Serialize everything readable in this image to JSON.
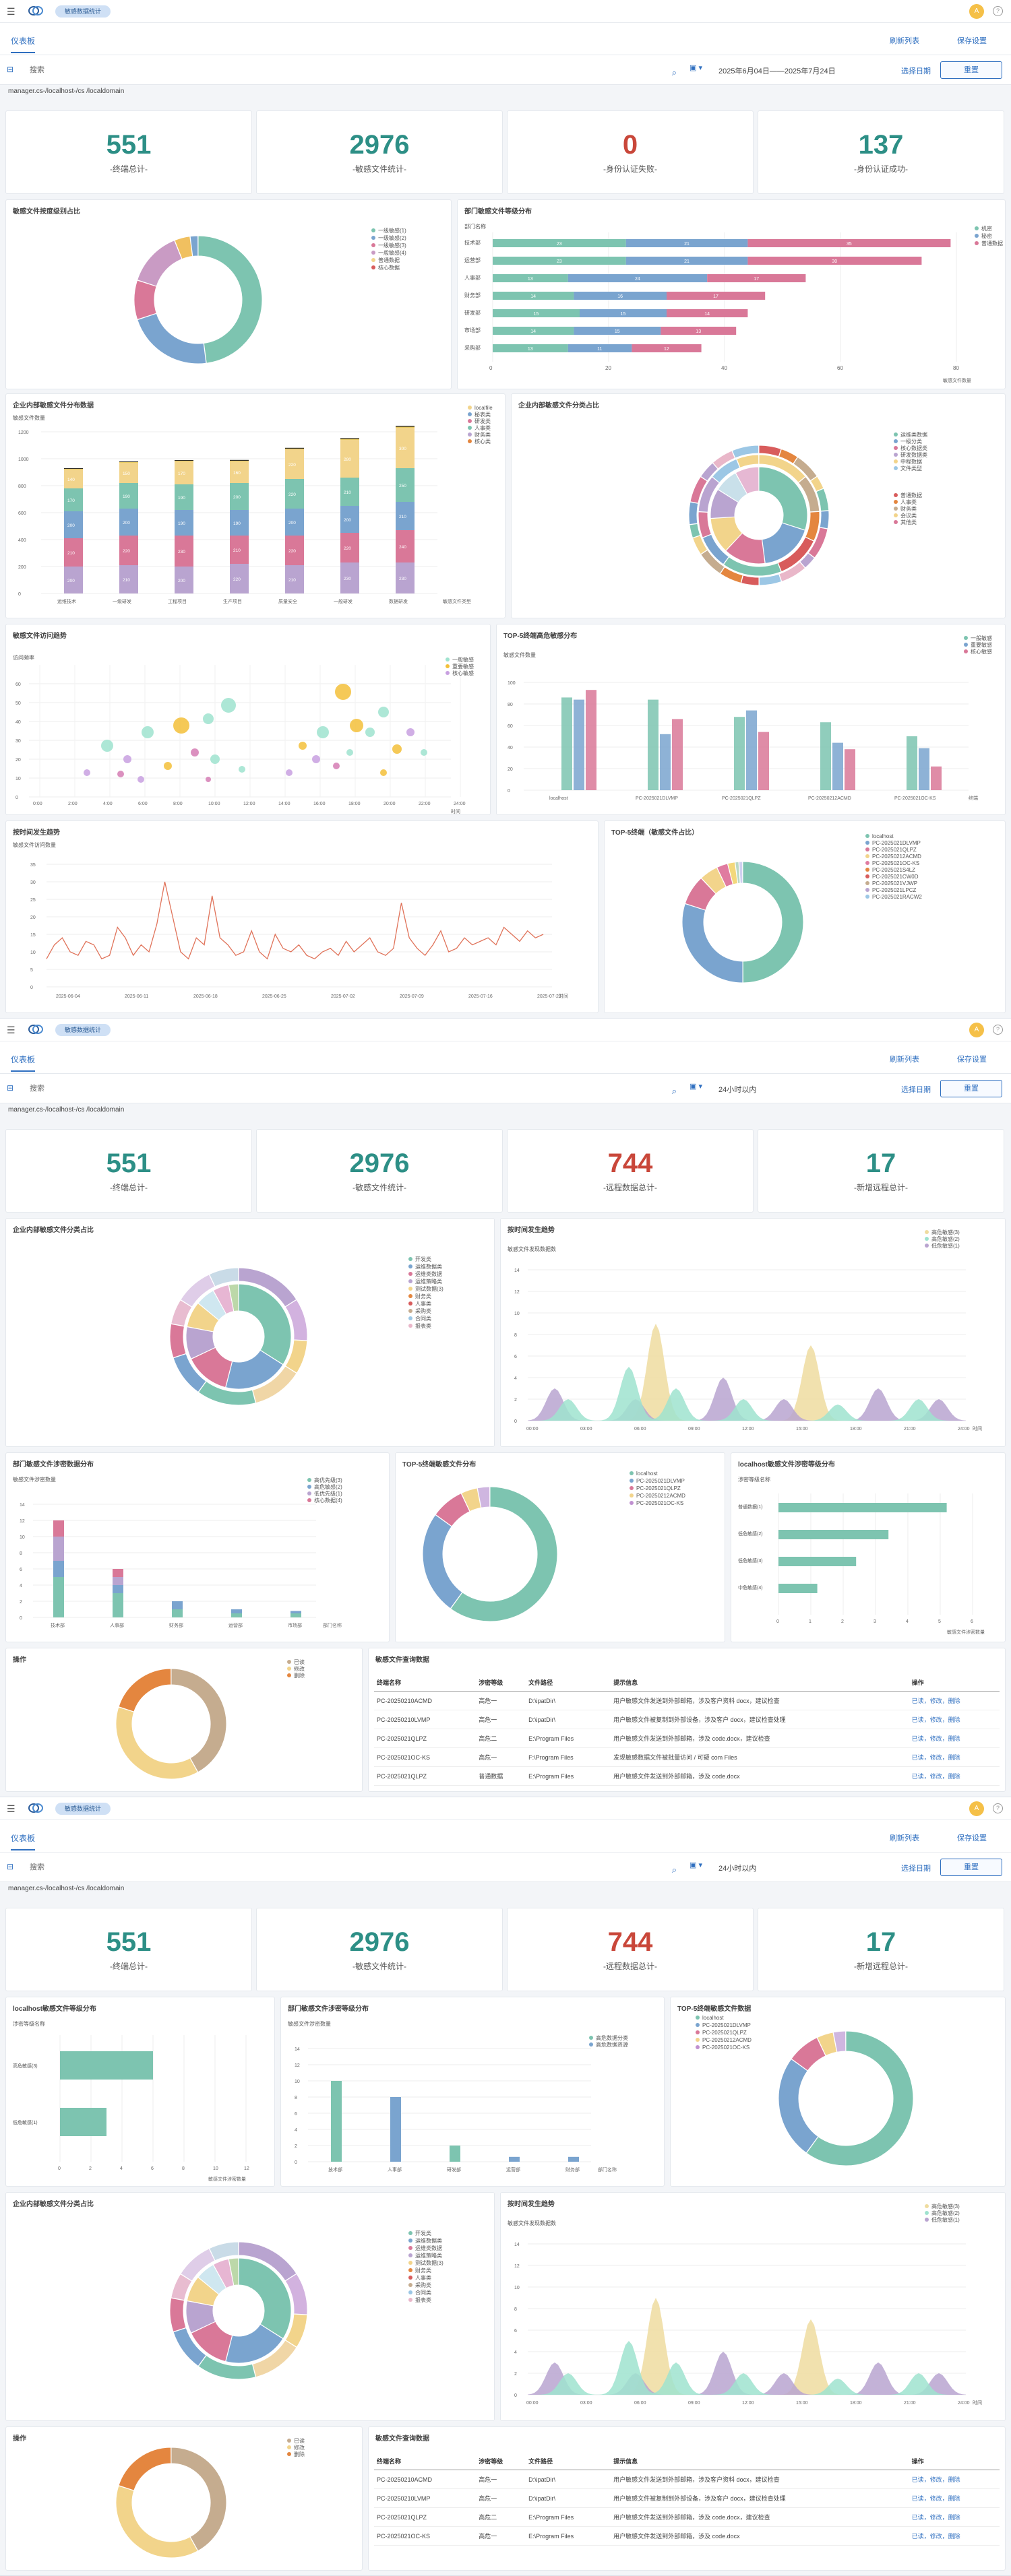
{
  "header": {
    "tag": "敏感数据统计",
    "avatar": "A"
  },
  "tabs": {
    "active": "仪表板",
    "refresh": "刷新列表",
    "save": "保存设置"
  },
  "filter": {
    "search_placeholder": "搜索",
    "date_range1": "2025年6月04日——2025年7月24日",
    "date_range2": "24小时以内",
    "select_all": "选择日期",
    "reset": "重置"
  },
  "path": "manager.cs-/localhost-/cs /localdomain",
  "kpi1": [
    {
      "value": "551",
      "label": "-终端总计-",
      "color": "#2d8f86"
    },
    {
      "value": "2976",
      "label": "-敏感文件统计-",
      "color": "#2d8f86"
    },
    {
      "value": "0",
      "label": "-身份认证失败-",
      "color": "#c9473a"
    },
    {
      "value": "137",
      "label": "-身份认证成功-",
      "color": "#2d8f86"
    }
  ],
  "kpi2": [
    {
      "value": "551",
      "label": "-终端总计-",
      "color": "#2d8f86"
    },
    {
      "value": "2976",
      "label": "-敏感文件统计-",
      "color": "#2d8f86"
    },
    {
      "value": "744",
      "label": "-远程数据总计-",
      "color": "#c9473a"
    },
    {
      "value": "17",
      "label": "-新增远程总计-",
      "color": "#2d8f86"
    }
  ],
  "titles": {
    "d1a": "敏感文件按度级别占比",
    "d1b": "部门敏感文件等级分布",
    "d1c": "企业内部敏感文件分布数据",
    "d1d": "企业内部敏感文件分类占比",
    "d1e": "敏感文件访问趋势",
    "d1f": "TOP-5终端高危敏感分布",
    "d1g": "按时间发生趋势",
    "d1h": "TOP-5终端（敏感文件占比）",
    "d2a": "企业内部敏感文件分类占比",
    "d2b": "按时间发生趋势",
    "d2c": "部门敏感文件涉密数据分布",
    "d2d": "TOP-5终端敏感文件分布",
    "d2e": "localhost敏感文件涉密等级分布",
    "d2f": "操作",
    "d2g": "敏感文件查询数据",
    "d3a": "localhost敏感文件等级分布",
    "d3b": "部门敏感文件涉密等级分布",
    "d3c": "TOP-5终端敏感文件数据",
    "d3d": "企业内部敏感文件分类占比",
    "d3e": "按时间发生趋势",
    "d3f": "操作",
    "d3g": "敏感文件查询数据"
  },
  "legends": {
    "levels": [
      "一级敏感(1)",
      "一级敏感(2)",
      "一级敏感(3)",
      "一般敏感(4)",
      "普通数据",
      "核心数据"
    ],
    "dept3": [
      "机密",
      "秘密",
      "普通数据"
    ],
    "filetypes": [
      "localfile",
      "秘表类",
      "研发类",
      "人事类",
      "财务类",
      "核心类"
    ],
    "trend3": [
      "一般敏感",
      "重要敏感",
      "核心敏感"
    ],
    "top5": [
      "localhost",
      "PC-2025021DLVMP",
      "PC-2025021QLPZ",
      "PC-20250212ACMD",
      "PC-2025021OC-KS"
    ],
    "top5b": [
      "一般敏感",
      "重要敏感",
      "核心敏感"
    ],
    "cat2": [
      "开发类",
      "运维数据类",
      "运维类数据",
      "运维策略类",
      "测试数据(3)",
      "财务类",
      "人事类",
      "采购类",
      "合同类",
      "报表类"
    ],
    "dept4": [
      "高优先级(3)",
      "高危敏感(2)",
      "低优先级(1)",
      "核心数据(4)"
    ],
    "ops": [
      "已读",
      "修改",
      "删除"
    ],
    "lvl2": [
      "高危敏感(3)",
      "高危敏感(2)",
      "低危敏感(1)"
    ],
    "dept2": [
      "高危数据分类",
      "高危数据资源"
    ]
  },
  "chart_data": [
    {
      "type": "pie",
      "title": "敏感文件按度级别占比",
      "values": [
        48,
        22,
        10,
        14,
        4,
        2
      ]
    },
    {
      "type": "bar",
      "title": "部门敏感文件等级分布",
      "xlabel": "敏感文件数量",
      "categories": [
        "技术部",
        "运营部",
        "人事部",
        "财务部",
        "研发部",
        "市场部",
        "采购部"
      ],
      "series": [
        {
          "name": "机密",
          "values": [
            23,
            23,
            13,
            14,
            15,
            14,
            13
          ]
        },
        {
          "name": "秘密",
          "values": [
            21,
            21,
            24,
            16,
            15,
            15,
            11
          ]
        },
        {
          "name": "普通数据",
          "values": [
            35,
            30,
            17,
            17,
            14,
            13,
            12
          ]
        }
      ],
      "xlim": [
        0,
        80
      ]
    },
    {
      "type": "bar",
      "title": "企业内部敏感文件分布数据",
      "ylabel": "敏感文件数量",
      "categories": [
        "运维技术",
        "一级研发",
        "工程项目",
        "生产项目",
        "质量安全",
        "一般研发",
        "数据研发"
      ],
      "ylim": [
        0,
        1500
      ]
    },
    {
      "type": "line",
      "title": "按时间发生趋势",
      "xlabel": "时间",
      "x": [
        "2025-06-04",
        "2025-06-11",
        "2025-06-18",
        "2025-06-25",
        "2025-07-02",
        "2025-07-09",
        "2025-07-16",
        "2025-07-23"
      ],
      "ylim": [
        0,
        35
      ]
    }
  ],
  "tables": {
    "head": [
      "终端名称",
      "涉密等级",
      "文件路径",
      "提示信息",
      "操作"
    ],
    "rows": [
      [
        "PC-20250210ACMD",
        "高危一",
        "D:\\ipatDir\\",
        "用户敏感文件发送到外部邮箱，涉及客户资料 docx，建议检查",
        "已读，修改，删除"
      ],
      [
        "PC-20250210LVMP",
        "高危一",
        "D:\\ipatDir\\",
        "用户敏感文件被复制到外部设备，涉及客户 docx，建议检查处理",
        "已读，修改，删除"
      ],
      [
        "PC-2025021QLPZ",
        "高危二",
        "E:\\Program Files",
        "用户敏感文件发送到外部邮箱，涉及 code.docx，建议检查",
        "已读，修改，删除"
      ],
      [
        "PC-2025021OC-KS",
        "高危一",
        "F:\\Program Files",
        "发现敏感数据文件被批量访问 / 可疑 com Files",
        "已读，修改，删除"
      ],
      [
        "PC-2025021QLPZ",
        "普通数据",
        "E:\\Program Files",
        "用户敏感文件发送到外部邮箱，涉及 code.docx",
        "已读，修改，删除"
      ]
    ],
    "rows2": [
      [
        "PC-20250210ACMD",
        "高危一",
        "D:\\ipatDir\\",
        "用户敏感文件发送到外部邮箱，涉及客户资料 docx，建议检查",
        "已读，修改，删除"
      ],
      [
        "PC-20250210LVMP",
        "高危一",
        "D:\\ipatDir\\",
        "用户敏感文件被复制到外部设备，涉及客户 docx，建议检查处理",
        "已读，修改，删除"
      ],
      [
        "PC-2025021QLPZ",
        "高危二",
        "E:\\Program Files",
        "用户敏感文件发送到外部邮箱，涉及 code.docx，建议检查",
        "已读，修改，删除"
      ],
      [
        "PC-2025021OC-KS",
        "高危一",
        "E:\\Program Files",
        "用户敏感文件发送到外部邮箱，涉及 code.docx",
        "已读，修改，删除"
      ]
    ]
  }
}
